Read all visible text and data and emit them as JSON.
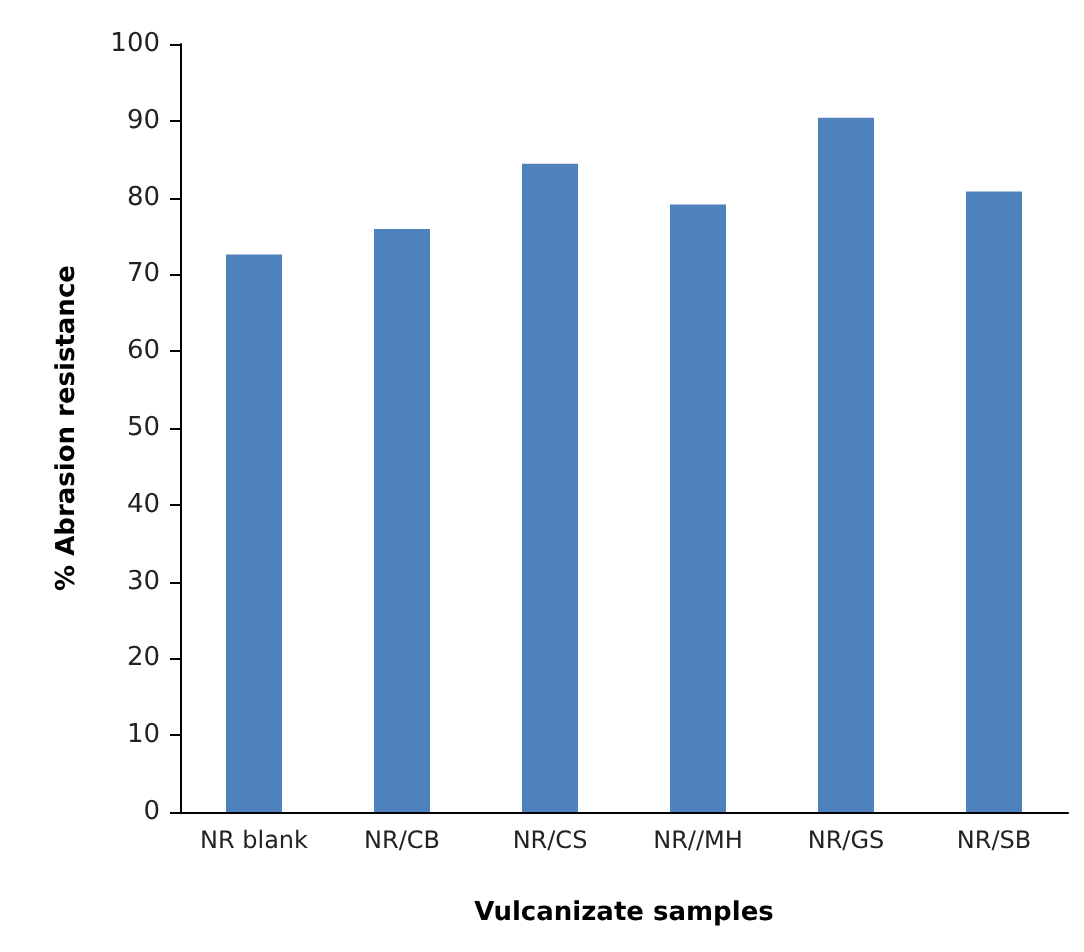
{
  "chart_data": {
    "type": "bar",
    "xlabel": "Vulcanizate samples",
    "ylabel": "% Abrasion resistance",
    "categories": [
      "NR blank",
      "NR/CB",
      "NR/CS",
      "NR//MH",
      "NR/GS",
      "NR/SB"
    ],
    "values": [
      72.6,
      75.9,
      84.4,
      79.1,
      90.4,
      80.8
    ],
    "color": "#4f81bd",
    "ylim": [
      0,
      100
    ],
    "yticks": [
      0,
      10,
      20,
      30,
      40,
      50,
      60,
      70,
      80,
      90,
      100
    ],
    "grid": false
  }
}
